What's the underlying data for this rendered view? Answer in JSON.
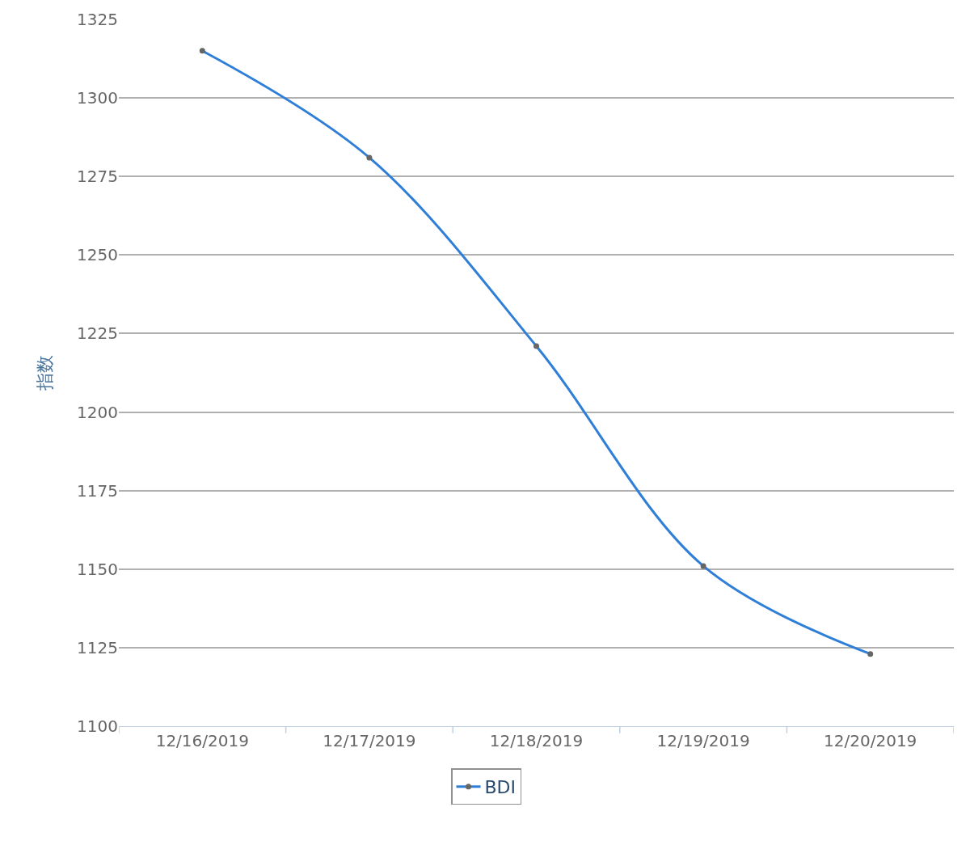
{
  "chart_data": {
    "type": "line",
    "ylabel": "指数",
    "categories": [
      "12/16/2019",
      "12/17/2019",
      "12/18/2019",
      "12/19/2019",
      "12/20/2019"
    ],
    "series": [
      {
        "name": "BDI",
        "color": "#2f7ed8",
        "values": [
          1315,
          1281,
          1221,
          1151,
          1123
        ]
      }
    ],
    "ylim": [
      1100,
      1325
    ],
    "yticks": [
      1100,
      1125,
      1150,
      1175,
      1200,
      1225,
      1250,
      1275,
      1300,
      1325
    ],
    "grid": "y",
    "legend": "bottom",
    "marker": "circle",
    "line_style": "solid"
  }
}
